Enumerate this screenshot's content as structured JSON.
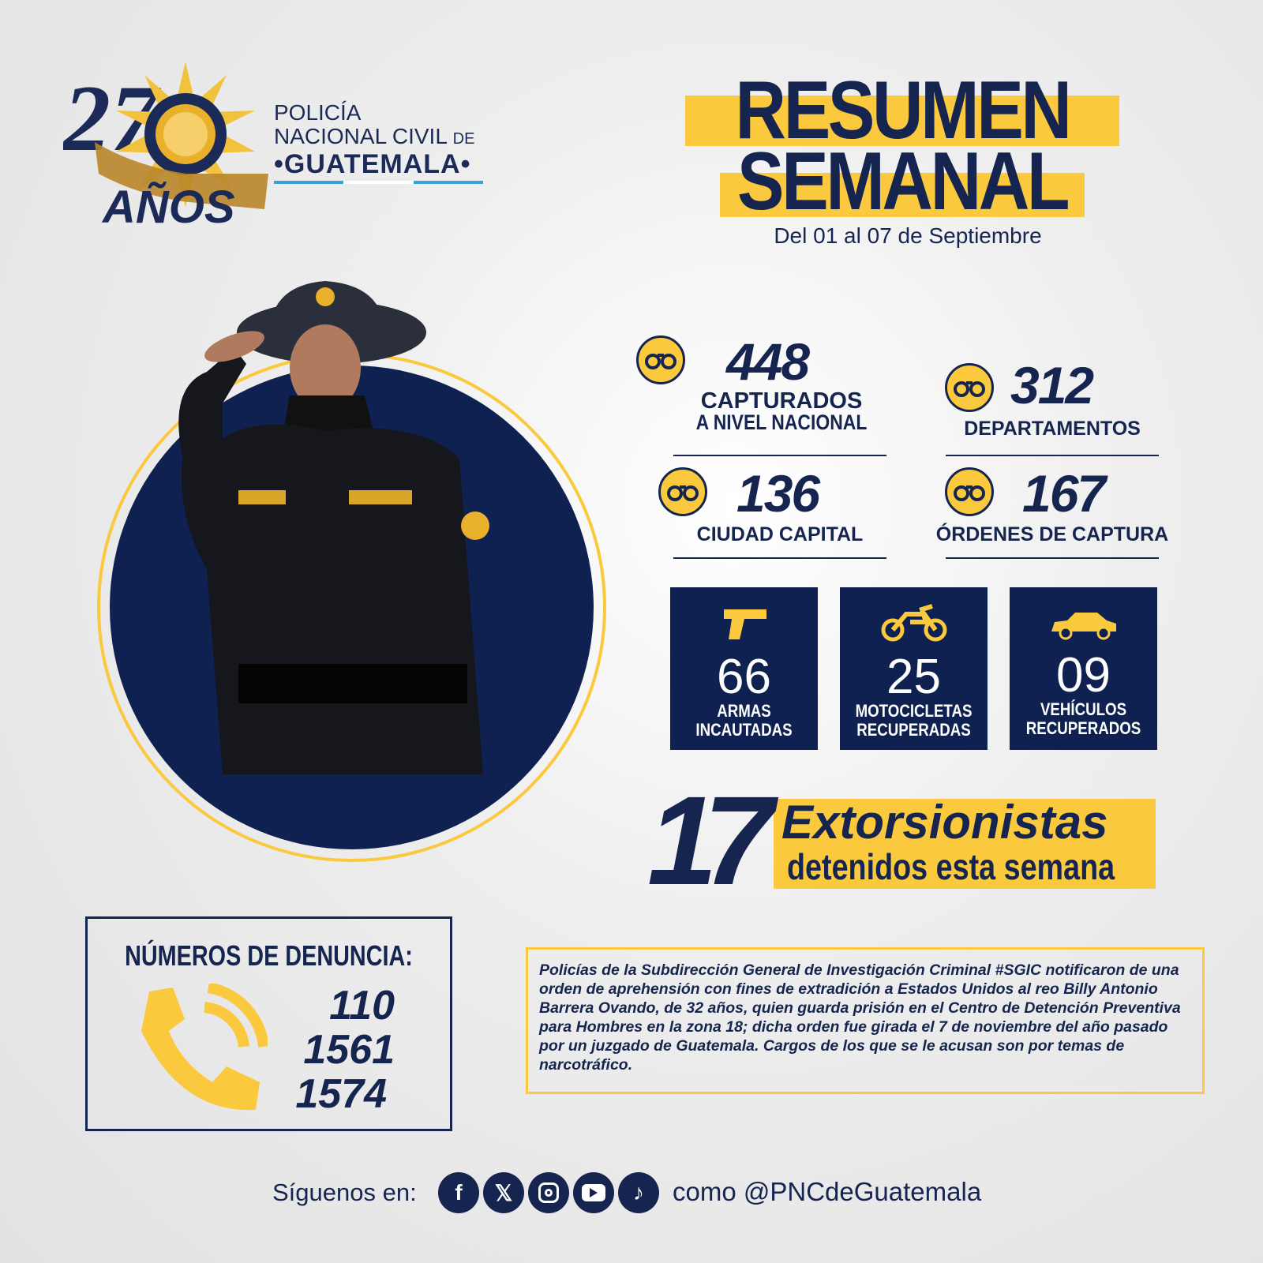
{
  "logo": {
    "anniversary": "27 AÑOS",
    "badge_text": "POLICIA NACIONAL CIVIL GUATEMALA",
    "line1": "POLICÍA",
    "line2": "NACIONAL CIVIL",
    "line2_small": "DE",
    "line3": "•GUATEMALA•"
  },
  "header": {
    "title_line1": "RESUMEN",
    "title_line2": "SEMANAL",
    "date_range": "Del 01 al 07 de Septiembre"
  },
  "stats": [
    {
      "value": "448",
      "label": "CAPTURADOS",
      "sublabel": "A NIVEL NACIONAL",
      "icon": "handcuffs-icon"
    },
    {
      "value": "312",
      "label": "DEPARTAMENTOS",
      "icon": "handcuffs-icon"
    },
    {
      "value": "136",
      "label": "CIUDAD CAPITAL",
      "icon": "handcuffs-icon"
    },
    {
      "value": "167",
      "label": "ÓRDENES DE CAPTURA",
      "icon": "handcuffs-icon"
    }
  ],
  "seizures": [
    {
      "value": "66",
      "label1": "ARMAS",
      "label2": "INCAUTADAS",
      "icon": "pistol-icon"
    },
    {
      "value": "25",
      "label1": "MOTOCICLETAS",
      "label2": "RECUPERADAS",
      "icon": "motorcycle-icon"
    },
    {
      "value": "09",
      "label1": "VEHÍCULOS",
      "label2": "RECUPERADOS",
      "icon": "car-icon"
    }
  ],
  "extortion": {
    "value": "17",
    "title": "Extorsionistas",
    "subtitle": "detenidos esta semana"
  },
  "complaints": {
    "title": "NÚMEROS DE DENUNCIA:",
    "numbers": [
      "110",
      "1561",
      "1574"
    ],
    "icon": "phone-icon"
  },
  "news": "Policías de la Subdirección General de Investigación Criminal #SGIC notificaron de una orden de aprehensión con fines de extradición a Estados Unidos al reo Billy Antonio Barrera Ovando, de 32 años, quien guarda prisión en el Centro de Detención Preventiva para Hombres en la zona 18; dicha orden fue girada el 7 de noviembre del año pasado por un juzgado de Guatemala. Cargos de los que se le acusan son por temas de narcotráfico.",
  "footer": {
    "follow": "Síguenos en:",
    "handle": "como @PNCdeGuatemala",
    "networks": [
      "facebook",
      "x",
      "instagram",
      "youtube",
      "tiktok"
    ]
  },
  "colors": {
    "navy": "#15254f",
    "yellow": "#fbc93d",
    "guatemala_blue": "#3aa0d8"
  }
}
